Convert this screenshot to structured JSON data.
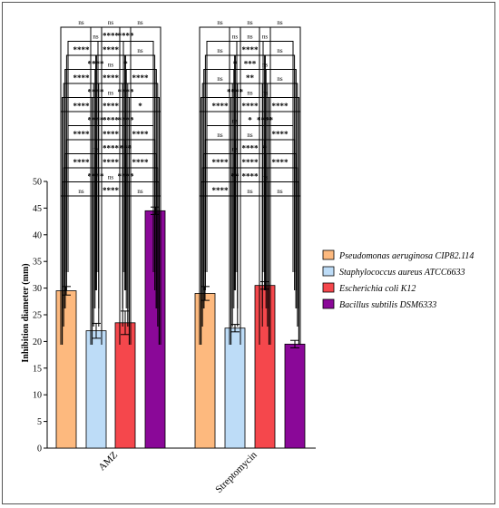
{
  "chart_data": {
    "type": "bar",
    "title": "",
    "xlabel": "",
    "ylabel": "Inhibition diameter (mm)",
    "ylim": [
      0,
      50
    ],
    "yticks": [
      0,
      5,
      10,
      15,
      20,
      25,
      30,
      35,
      40,
      45,
      50
    ],
    "categories": [
      "AMZ",
      "Streptomycin"
    ],
    "legend_position": "right",
    "series": [
      {
        "name": "Pseudomonas aeruginosa CIP82.114",
        "color": "#FDB97E",
        "values": [
          29.5,
          29.0
        ],
        "errors": [
          0.8,
          1.3
        ]
      },
      {
        "name": "Staphylococcus aureus ATCC6633",
        "color": "#BDDCF7",
        "values": [
          22.0,
          22.5
        ],
        "errors": [
          1.4,
          0.7
        ]
      },
      {
        "name": "Escherichia coli K12",
        "color": "#F5474C",
        "values": [
          23.5,
          30.5
        ],
        "errors": [
          2.2,
          0.7
        ]
      },
      {
        "name": "Bacillus subtilis DSM6333",
        "color": "#8A0898",
        "values": [
          44.5,
          19.5
        ],
        "errors": [
          0.7,
          0.7
        ]
      }
    ],
    "annotations": {
      "amz": [
        "ns",
        "****",
        "ns",
        "****",
        "****",
        "ns",
        "****",
        "****",
        "****",
        "ns",
        "***",
        "****",
        "****",
        "****",
        "****",
        "****",
        "****",
        "****",
        "****",
        "****",
        "*",
        "****",
        "****",
        "ns",
        "****",
        "****",
        "****",
        "****",
        "*",
        "ns",
        "****",
        "****",
        "ns",
        "ns",
        "****",
        "****",
        "ns",
        "ns",
        "ns"
      ],
      "str": [
        "****",
        "ns",
        "ns",
        "**",
        "ns",
        "****",
        "****",
        "****",
        "****",
        "ns",
        "*",
        "****",
        "ns",
        "ns",
        "****",
        "ns",
        "****",
        "*",
        "****",
        "****",
        "****",
        "****",
        "ns",
        "ns",
        "ns",
        "**",
        "ns",
        "*",
        "ns",
        "***",
        "ns",
        "****",
        "ns",
        "ns",
        "ns",
        "ns",
        "ns",
        "ns",
        "ns"
      ]
    }
  }
}
